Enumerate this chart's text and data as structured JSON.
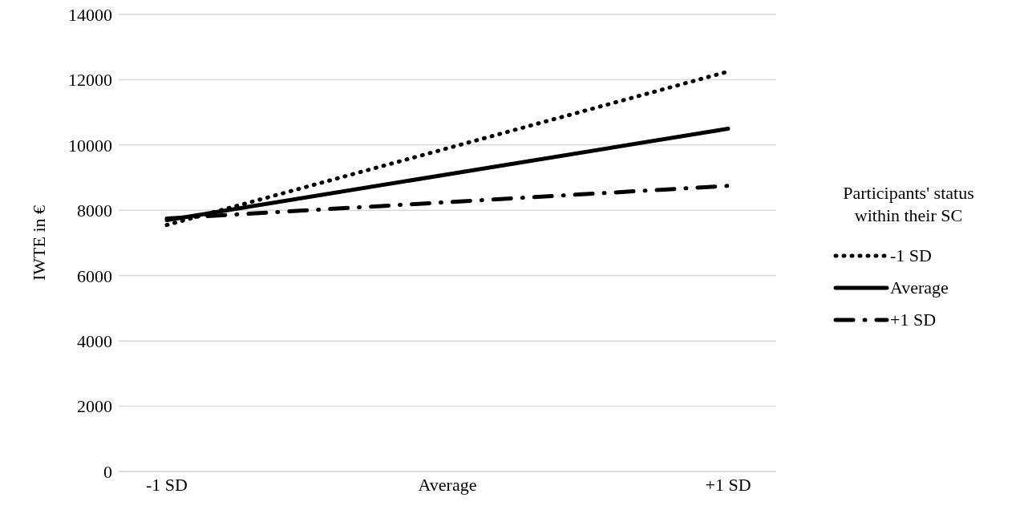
{
  "chart_data": {
    "type": "line",
    "ylabel": "IWTE in €",
    "legend_title": "Participants' status within their SC",
    "categories": [
      "-1 SD",
      "Average",
      "+1 SD"
    ],
    "series": [
      {
        "name": "-1 SD",
        "color": "#000000",
        "line_style": "dotted",
        "values": [
          7550,
          9900,
          12250
        ]
      },
      {
        "name": "Average",
        "color": "#000000",
        "line_style": "solid",
        "values": [
          7700,
          9100,
          10500
        ]
      },
      {
        "name": "+1 SD",
        "color": "#000000",
        "line_style": "dashed",
        "values": [
          7750,
          8250,
          8750
        ]
      }
    ],
    "ylim": [
      0,
      14000
    ],
    "yticks": [
      0,
      2000,
      4000,
      6000,
      8000,
      10000,
      12000,
      14000
    ],
    "grid": "y",
    "legend": "right",
    "marker": "none"
  }
}
